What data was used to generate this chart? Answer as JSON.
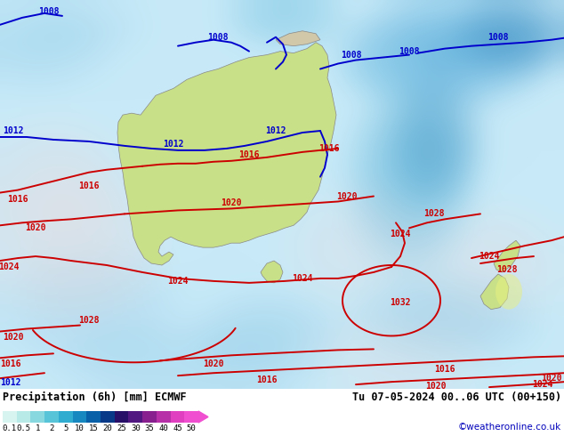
{
  "title_left": "Precipitation (6h) [mm] ECMWF",
  "title_right": "Tu 07-05-2024 00..06 UTC (00+150)",
  "credit": "©weatheronline.co.uk",
  "colorbar_levels": [
    0.1,
    0.5,
    1,
    2,
    5,
    10,
    15,
    20,
    25,
    30,
    35,
    40,
    45,
    50
  ],
  "colorbar_colors": [
    "#d8f4f0",
    "#b8eae8",
    "#88d8e0",
    "#58c4d8",
    "#30acd0",
    "#1888c0",
    "#0860a8",
    "#083888",
    "#281068",
    "#501880",
    "#882090",
    "#b830a8",
    "#e040c0",
    "#f050d0"
  ],
  "fig_width": 6.34,
  "fig_height": 4.9,
  "dpi": 100,
  "map_bg": "#c8eaf8",
  "land_aus": "#c8e0a0",
  "land_nz": "#c8e0a0",
  "ocean_light": "#b0d8f0",
  "ocean_blue": "#88c8e8",
  "precip_light": "#d0eef8",
  "precip_medium": "#88c0e0",
  "precip_dark": "#4090c0"
}
